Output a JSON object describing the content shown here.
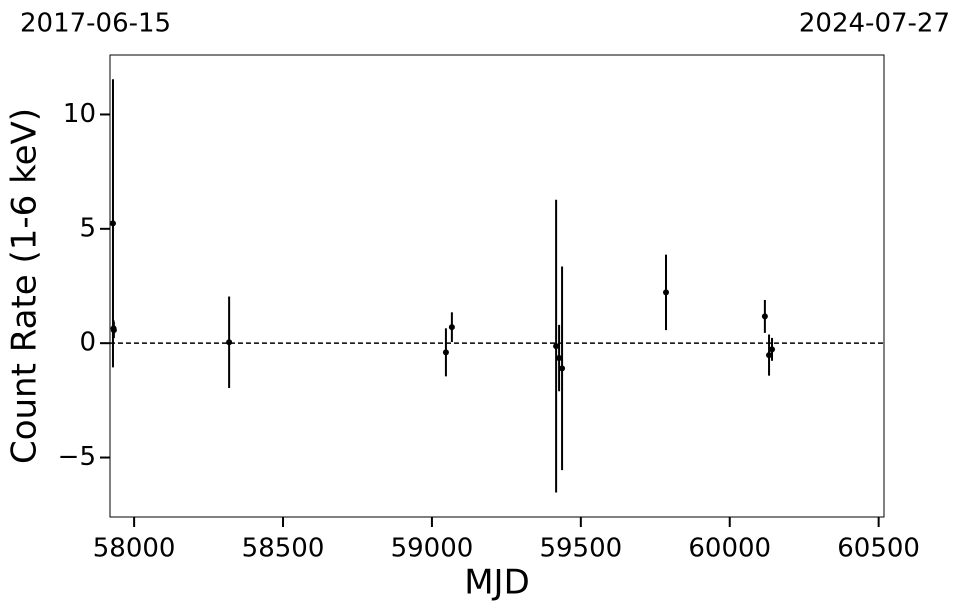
{
  "chart_data": {
    "type": "errorbar",
    "annotations": [
      "2017-06-15",
      "2024-07-27"
    ],
    "xlabel": "MJD",
    "ylabel": "Count Rate (1-6 keV)",
    "x": [
      57929,
      57931,
      57932,
      58319,
      59047,
      59067,
      59417,
      59427,
      59437,
      59786,
      60118,
      60132,
      60142
    ],
    "values": [
      5.24,
      0.65,
      0.57,
      0.04,
      -0.4,
      0.7,
      -0.13,
      -0.65,
      -1.1,
      2.22,
      1.17,
      -0.52,
      -0.27
    ],
    "errors": [
      6.3,
      0.35,
      0.35,
      2.0,
      1.05,
      0.65,
      6.4,
      1.45,
      4.45,
      1.65,
      0.72,
      0.9,
      0.5
    ],
    "color": "#000000",
    "hline": 0,
    "xlim": [
      57919,
      60518
    ],
    "ylim": [
      -7.6,
      12.6
    ],
    "xticks": [
      58000,
      58500,
      59000,
      59500,
      60000,
      60500
    ],
    "yticks": [
      {
        "value": -5,
        "label": "−5"
      },
      0,
      5,
      10
    ]
  }
}
